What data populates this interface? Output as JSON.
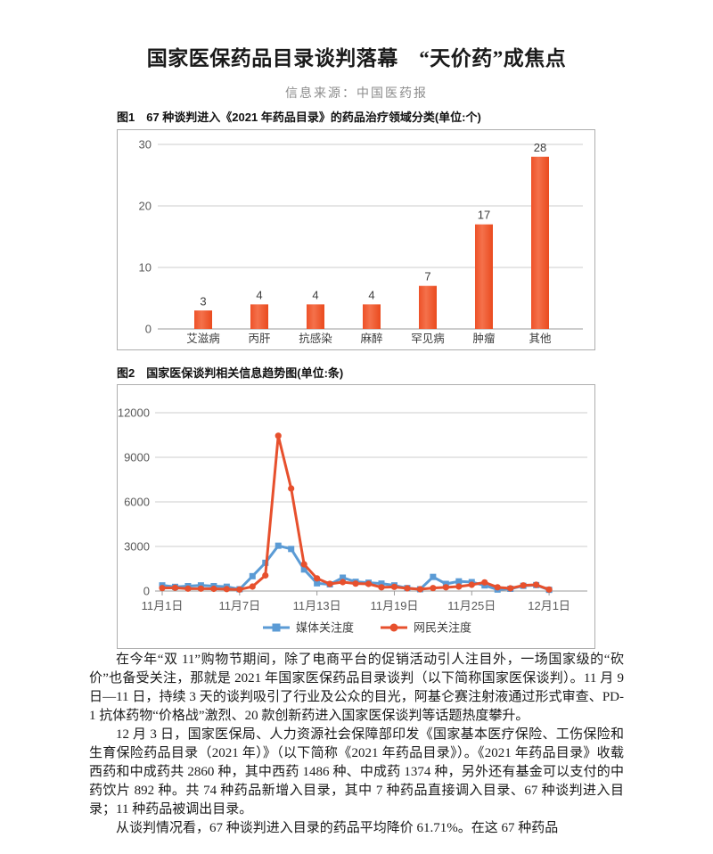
{
  "header": {
    "title": "国家医保药品目录谈判落幕　“天价药”成焦点",
    "source": "信息来源：中国医药报"
  },
  "figures": [
    {
      "label": "图1",
      "caption": "67 种谈判进入《2021 年药品目录》的药品治疗领域分类(单位:个)"
    },
    {
      "label": "图2",
      "caption": "国家医保谈判相关信息趋势图(单位:条)"
    }
  ],
  "chart_data": [
    {
      "type": "bar",
      "title": "67种谈判进入《2021年药品目录》的药品治疗领域分类",
      "unit": "个",
      "categories": [
        "艾滋病",
        "丙肝",
        "抗感染",
        "麻醉",
        "罕见病",
        "肿瘤",
        "其他"
      ],
      "values": [
        3,
        4,
        4,
        4,
        7,
        17,
        28
      ],
      "ylim": [
        0,
        30
      ],
      "yticks": [
        0,
        10,
        20,
        30
      ],
      "grid": true,
      "bar_color": "#f15a31",
      "bar_gradient": [
        "#ee5128",
        "#f4714b",
        "#ea4a1e"
      ],
      "grid_color": "#cccccc",
      "axis_color": "#9b9b9b",
      "tick_label_color": "#595959",
      "value_label_color": "#3d3d3d"
    },
    {
      "type": "line",
      "title": "国家医保谈判相关信息趋势图",
      "unit": "条",
      "x": [
        "11月1日",
        "11月2日",
        "11月3日",
        "11月4日",
        "11月5日",
        "11月6日",
        "11月7日",
        "11月8日",
        "11月9日",
        "11月10日",
        "11月11日",
        "11月12日",
        "11月13日",
        "11月14日",
        "11月15日",
        "11月16日",
        "11月17日",
        "11月18日",
        "11月19日",
        "11月20日",
        "11月21日",
        "11月22日",
        "11月23日",
        "11月24日",
        "11月25日",
        "11月26日",
        "11月27日",
        "11月28日",
        "11月29日",
        "11月30日",
        "12月1日"
      ],
      "x_tick_labels": [
        "11月1日",
        "11月7日",
        "11月13日",
        "11月19日",
        "11月25日",
        "12月1日"
      ],
      "x_tick_indices": [
        0,
        6,
        12,
        18,
        24,
        30
      ],
      "series": [
        {
          "name": "媒体关注度",
          "color": "#5b9bd5",
          "marker": "square",
          "values": [
            380,
            280,
            330,
            380,
            330,
            290,
            120,
            1000,
            1900,
            3050,
            2830,
            1450,
            520,
            450,
            900,
            620,
            560,
            500,
            380,
            200,
            120,
            950,
            480,
            650,
            600,
            380,
            100,
            150,
            350,
            400,
            80
          ]
        },
        {
          "name": "网民关注度",
          "color": "#e7502d",
          "marker": "circle",
          "values": [
            200,
            220,
            160,
            160,
            150,
            130,
            100,
            300,
            1050,
            10450,
            6900,
            1800,
            850,
            480,
            600,
            500,
            480,
            250,
            280,
            180,
            120,
            200,
            250,
            300,
            420,
            580,
            250,
            180,
            380,
            420,
            100
          ]
        }
      ],
      "ylim": [
        0,
        12000
      ],
      "yticks": [
        0,
        3000,
        6000,
        9000,
        12000
      ],
      "grid": true,
      "legend_position": "bottom",
      "grid_color": "#cccccc",
      "axis_color": "#9b9b9b",
      "tick_label_color": "#595959",
      "legend_text_color": "#3d3d3d"
    }
  ],
  "body": {
    "paragraphs": [
      "在今年“双 11”购物节期间，除了电商平台的促销活动引人注目外，一场国家级的“砍价”也备受关注，那就是 2021 年国家医保药品目录谈判（以下简称国家医保谈判）。11 月 9 日—11 日，持续 3 天的谈判吸引了行业及公众的目光，阿基仑赛注射液通过形式审查、PD-1 抗体药物“价格战”激烈、20 款创新药进入国家医保谈判等话题热度攀升。",
      "12 月 3 日，国家医保局、人力资源社会保障部印发《国家基本医疗保险、工伤保险和生育保险药品目录（2021 年）》（以下简称《2021 年药品目录》）。《2021 年药品目录》收载西药和中成药共 2860 种，其中西药 1486 种、中成药 1374 种，另外还有基金可以支付的中药饮片 892 种。共 74 种药品新增入目录，其中 7 种药品直接调入目录、67 种谈判进入目录；11 种药品被调出目录。",
      "从谈判情况看，67 种谈判进入目录的药品平均降价 61.71%。在这 67 种药品"
    ]
  }
}
